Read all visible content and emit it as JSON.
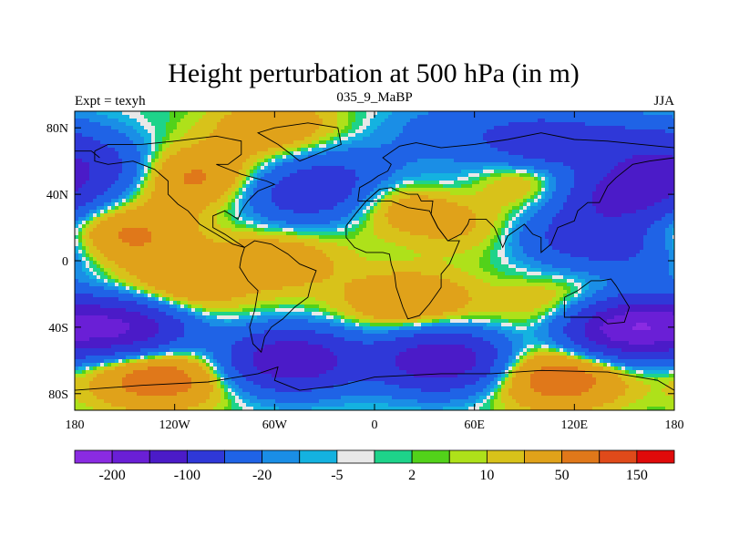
{
  "chart_data": {
    "type": "heatmap",
    "title": "Height perturbation at 500 hPa (in m)",
    "subtitle_left": "Expt = texyh",
    "subtitle_center": "035_9_MaBP",
    "subtitle_right": "JJA",
    "x_ticks": [
      "180",
      "120W",
      "60W",
      "0",
      "60E",
      "120E",
      "180"
    ],
    "y_ticks": [
      "80N",
      "40N",
      "0",
      "40S",
      "80S"
    ],
    "xlim": [
      -180,
      180
    ],
    "ylim": [
      -90,
      90
    ],
    "colorbar": {
      "colors": [
        "#8a2be2",
        "#6a1fd6",
        "#4b1bc8",
        "#2f38d8",
        "#1f63e6",
        "#1a8ee6",
        "#14b2e0",
        "#e8e8e8",
        "#1ed38a",
        "#52d21a",
        "#aee11a",
        "#d8c21a",
        "#e0a21a",
        "#e0781a",
        "#e04a1a",
        "#e00a0a"
      ],
      "tick_labels": [
        "-200",
        "-100",
        "-20",
        "-5",
        "2",
        "10",
        "50",
        "150"
      ]
    },
    "field_levels": [
      -200,
      -150,
      -100,
      -50,
      -20,
      -10,
      -5,
      -2,
      2,
      5,
      10,
      20,
      50,
      100,
      150,
      200
    ],
    "field_features": [
      {
        "lon": -150,
        "lat": 15,
        "value": 60
      },
      {
        "lon": -110,
        "lat": 50,
        "value": 60
      },
      {
        "lon": -60,
        "lat": 80,
        "value": 40
      },
      {
        "lon": -40,
        "lat": 40,
        "value": -80
      },
      {
        "lon": -15,
        "lat": 55,
        "value": -30
      },
      {
        "lon": 40,
        "lat": 80,
        "value": -25
      },
      {
        "lon": 100,
        "lat": 70,
        "value": -90
      },
      {
        "lon": 150,
        "lat": 40,
        "value": -120
      },
      {
        "lon": 90,
        "lat": 50,
        "value": 50
      },
      {
        "lon": 50,
        "lat": 45,
        "value": -30
      },
      {
        "lon": 20,
        "lat": 35,
        "value": 45
      },
      {
        "lon": 60,
        "lat": 20,
        "value": 20
      },
      {
        "lon": 120,
        "lat": 15,
        "value": -60
      },
      {
        "lon": 160,
        "lat": 5,
        "value": -40
      },
      {
        "lon": -60,
        "lat": 0,
        "value": 40
      },
      {
        "lon": -150,
        "lat": -40,
        "value": -150
      },
      {
        "lon": -120,
        "lat": -20,
        "value": 45
      },
      {
        "lon": -50,
        "lat": -60,
        "value": -150
      },
      {
        "lon": 40,
        "lat": -60,
        "value": -150
      },
      {
        "lon": 20,
        "lat": -25,
        "value": 50
      },
      {
        "lon": 120,
        "lat": -30,
        "value": 45
      },
      {
        "lon": 150,
        "lat": -40,
        "value": -200
      },
      {
        "lon": -130,
        "lat": -70,
        "value": 80
      },
      {
        "lon": 110,
        "lat": -70,
        "value": 80
      },
      {
        "lon": -170,
        "lat": 55,
        "value": -70
      },
      {
        "lon": 160,
        "lat": 70,
        "value": -50
      }
    ]
  }
}
